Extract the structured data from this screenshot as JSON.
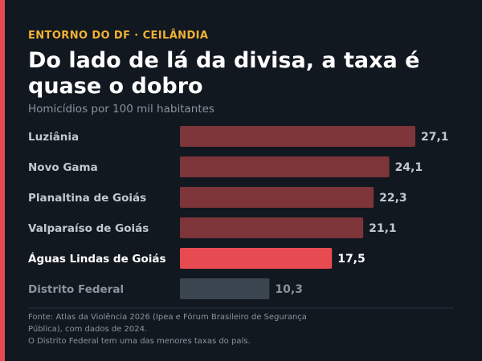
{
  "kicker": "ENTORNO DO DF · CEILÂNDIA",
  "title": "Do lado de lá da divisa, a taxa é quase o dobro",
  "subtitle": "Homicídios por 100 mil habitantes",
  "colors": {
    "background": "#121820",
    "accent": "#e84a52",
    "kicker": "#f2b233",
    "bar_default": "#7d3539",
    "bar_highlight": "#e84a52",
    "bar_reference": "#3b4550",
    "label_default": "#c2c8cf",
    "label_highlight": "#ffffff",
    "label_reference": "#8b939c"
  },
  "chart_data": {
    "type": "bar",
    "orientation": "horizontal",
    "categories": [
      "Luziânia",
      "Novo Gama",
      "Planaltina de Goiás",
      "Valparaíso de Goiás",
      "Águas Lindas de Goiás",
      "Distrito Federal"
    ],
    "values": [
      27.1,
      24.1,
      22.3,
      21.1,
      17.5,
      10.3
    ],
    "value_labels": [
      "27,1",
      "24,1",
      "22,3",
      "21,1",
      "17,5",
      "10,3"
    ],
    "highlight": "Águas Lindas de Goiás",
    "reference": "Distrito Federal",
    "xlim": [
      0,
      27.1
    ],
    "grid": false
  },
  "footer": {
    "line1": "Fonte: Atlas da Violência 2026 (Ipea e Fórum Brasileiro de Segurança",
    "line2": "Pública), com dados de 2024.",
    "line3": "O Distrito Federal tem uma das menores taxas do país."
  }
}
